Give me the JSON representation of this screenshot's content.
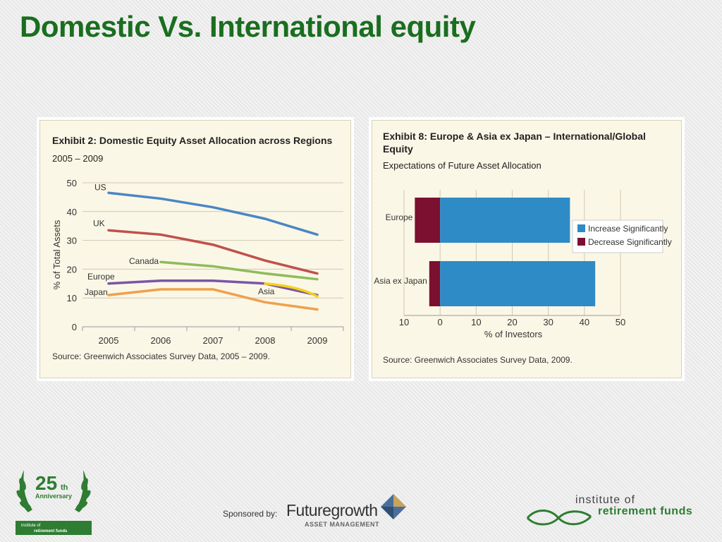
{
  "slide": {
    "title": "Domestic Vs. International equity"
  },
  "chart_data": [
    {
      "type": "line",
      "title": "Exhibit 2: Domestic Equity Asset Allocation across Regions",
      "subtitle": "2005 – 2009",
      "xlabel": "",
      "ylabel": "% of Total Assets",
      "x": [
        "2005",
        "2006",
        "2007",
        "2008",
        "2009"
      ],
      "ylim": [
        0,
        50
      ],
      "yticks": [
        0,
        10,
        20,
        30,
        40,
        50
      ],
      "grid": true,
      "series": [
        {
          "name": "US",
          "color": "#4a86c5",
          "values": [
            46.5,
            44.5,
            41.5,
            37.5,
            32.0
          ]
        },
        {
          "name": "UK",
          "color": "#c0504d",
          "values": [
            33.5,
            32.0,
            28.5,
            23.0,
            18.5
          ]
        },
        {
          "name": "Canada",
          "color": "#8fbc5a",
          "values": [
            null,
            22.5,
            21.0,
            18.5,
            16.5
          ]
        },
        {
          "name": "Europe",
          "color": "#7a56a6",
          "values": [
            15.0,
            16.0,
            16.0,
            15.0,
            11.0
          ]
        },
        {
          "name": "Japan",
          "color": "#f0a04b",
          "values": [
            11.0,
            13.0,
            13.0,
            8.5,
            6.0
          ]
        },
        {
          "name": "Asia",
          "color": "#f5d21a",
          "values": [
            null,
            null,
            null,
            15.0,
            10.5
          ]
        }
      ],
      "source": "Source: Greenwich Associates Survey Data, 2005 – 2009."
    },
    {
      "type": "bar",
      "orientation": "horizontal",
      "title": "Exhibit 8: Europe & Asia ex Japan – International/Global Equity",
      "title_line1": "Exhibit 8: Europe & Asia ex Japan – International/Global",
      "title_line2": "Equity",
      "subtitle": "Expectations of Future Asset Allocation",
      "xlabel": "% of Investors",
      "categories": [
        "Europe",
        "Asia ex Japan"
      ],
      "xlim": [
        -10,
        50
      ],
      "xticks": [
        -10,
        0,
        10,
        20,
        30,
        40,
        50
      ],
      "xtick_labels": [
        "10",
        "0",
        "10",
        "20",
        "30",
        "40",
        "50"
      ],
      "grid": true,
      "legend_position": "right",
      "series": [
        {
          "name": "Increase Significantly",
          "color": "#2e8bc6",
          "values": [
            36,
            43
          ]
        },
        {
          "name": "Decrease Significantly",
          "color": "#7b1030",
          "values": [
            7,
            3
          ]
        }
      ],
      "source": "Source: Greenwich Associates Survey Data, 2009."
    }
  ],
  "footer": {
    "anniversary_number": "25",
    "anniversary_suffix": "th",
    "anniversary_label": "Anniversary",
    "anniversary_org_line1": "institute of",
    "anniversary_org_line2": "retirement funds",
    "sponsor_label": "Sponsored by:",
    "sponsor_name": "Futuregrowth",
    "sponsor_sub": "ASSET MANAGEMENT",
    "irf_line1": "institute of",
    "irf_line2": "retirement funds"
  },
  "colors": {
    "title": "#1a6e1f",
    "brand_green": "#2e7d32",
    "panel_bg": "#fbf7e6"
  }
}
